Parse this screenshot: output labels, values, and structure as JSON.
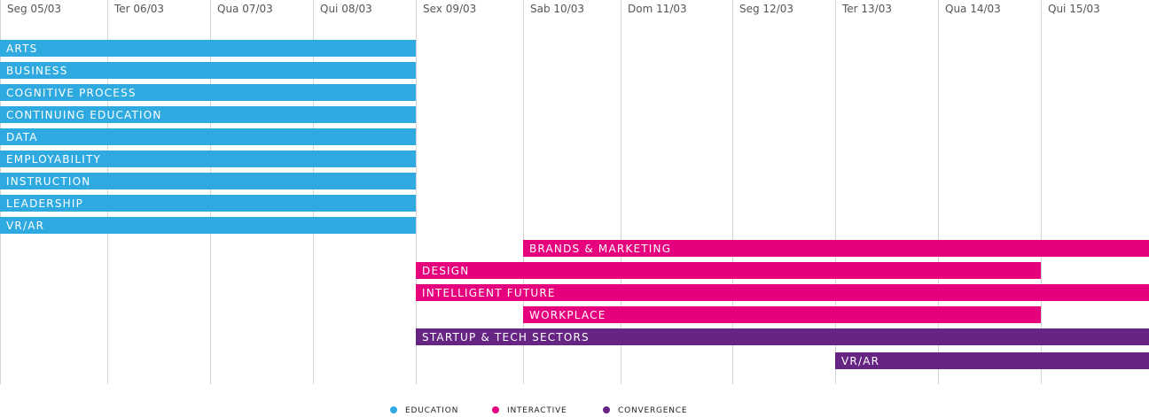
{
  "chart_data": {
    "type": "gantt",
    "days": [
      "Seg 05/03",
      "Ter 06/03",
      "Qua 07/03",
      "Qui 08/03",
      "Sex 09/03",
      "Sab 10/03",
      "Dom 11/03",
      "Seg 12/03",
      "Ter 13/03",
      "Qua 14/03",
      "Qui 15/03"
    ],
    "categories": {
      "education": {
        "label": "EDUCATION",
        "color": "#2eaae1"
      },
      "interactive": {
        "label": "INTERACTIVE",
        "color": "#e6007e"
      },
      "convergence": {
        "label": "CONVERGENCE",
        "color": "#662483"
      }
    },
    "bars": [
      {
        "label": "ARTS",
        "cat": "education",
        "start": 0,
        "end": 4
      },
      {
        "label": "BUSINESS",
        "cat": "education",
        "start": 0,
        "end": 4
      },
      {
        "label": "COGNITIVE PROCESS",
        "cat": "education",
        "start": 0,
        "end": 4
      },
      {
        "label": "CONTINUING EDUCATION",
        "cat": "education",
        "start": 0,
        "end": 4
      },
      {
        "label": "DATA",
        "cat": "education",
        "start": 0,
        "end": 4
      },
      {
        "label": "EMPLOYABILITY",
        "cat": "education",
        "start": 0,
        "end": 4
      },
      {
        "label": "INSTRUCTION",
        "cat": "education",
        "start": 0,
        "end": 4
      },
      {
        "label": "LEADERSHIP",
        "cat": "education",
        "start": 0,
        "end": 4
      },
      {
        "label": "VR/AR",
        "cat": "education",
        "start": 0,
        "end": 4
      },
      {
        "label": "BRANDS & MARKETING",
        "cat": "interactive",
        "start": 5,
        "end": 11
      },
      {
        "label": "DESIGN",
        "cat": "interactive",
        "start": 4,
        "end": 10
      },
      {
        "label": "INTELLIGENT FUTURE",
        "cat": "interactive",
        "start": 4,
        "end": 11
      },
      {
        "label": "WORKPLACE",
        "cat": "interactive",
        "start": 5,
        "end": 10
      },
      {
        "label": "STARTUP & TECH SECTORS",
        "cat": "convergence",
        "start": 4,
        "end": 11
      },
      {
        "label": "VR/AR",
        "cat": "convergence",
        "start": 8,
        "end": 11
      }
    ],
    "legend": [
      "education",
      "interactive",
      "convergence"
    ]
  }
}
